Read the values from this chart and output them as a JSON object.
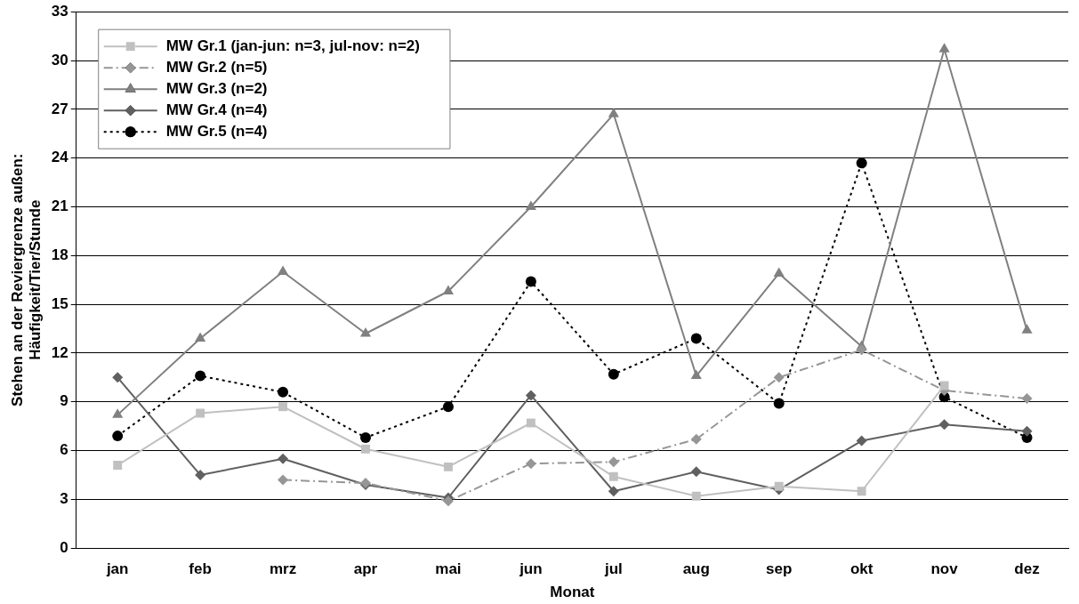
{
  "chart_data": {
    "type": "line",
    "xlabel": "Monat",
    "ylabel": "Stehen an der Reviergrenze außen:\nHäufigkeit/Tier/Stunde",
    "categories": [
      "jan",
      "feb",
      "mrz",
      "apr",
      "mai",
      "jun",
      "jul",
      "aug",
      "sep",
      "okt",
      "nov",
      "dez"
    ],
    "series": [
      {
        "name": "MW Gr.1 (jan-jun: n=3, jul-nov: n=2)",
        "color": "#c0c0c0",
        "marker": "square",
        "line_style": "solid",
        "values": [
          5.1,
          8.3,
          8.7,
          6.1,
          5.0,
          7.7,
          4.4,
          3.2,
          3.8,
          3.5,
          10.0,
          null
        ]
      },
      {
        "name": "MW Gr.2 (n=5)",
        "color": "#969696",
        "marker": "diamond",
        "line_style": "dashed",
        "values": [
          null,
          null,
          4.2,
          4.0,
          2.9,
          5.2,
          5.3,
          6.7,
          10.5,
          12.2,
          9.7,
          9.2
        ]
      },
      {
        "name": "MW Gr.3 (n=2)",
        "color": "#808080",
        "marker": "triangle",
        "line_style": "solid",
        "values": [
          8.2,
          12.9,
          17.0,
          13.2,
          15.8,
          21.0,
          26.7,
          10.6,
          16.9,
          12.4,
          30.7,
          13.4
        ]
      },
      {
        "name": "MW Gr.4 (n=4)",
        "color": "#606060",
        "marker": "diamond",
        "line_style": "solid",
        "values": [
          10.5,
          4.5,
          5.5,
          3.9,
          3.1,
          9.4,
          3.5,
          4.7,
          3.6,
          6.6,
          7.6,
          7.2
        ]
      },
      {
        "name": "MW Gr.5 (n=4)",
        "color": "#000000",
        "marker": "circle",
        "line_style": "dotted",
        "values": [
          6.9,
          10.6,
          9.6,
          6.8,
          8.7,
          16.4,
          10.7,
          12.9,
          8.9,
          23.7,
          9.3,
          6.8
        ]
      }
    ],
    "ylim": [
      0,
      33
    ],
    "yticks": [
      0,
      3,
      6,
      9,
      12,
      15,
      18,
      21,
      24,
      27,
      30,
      33
    ],
    "grid": "y",
    "legend": "top left"
  }
}
